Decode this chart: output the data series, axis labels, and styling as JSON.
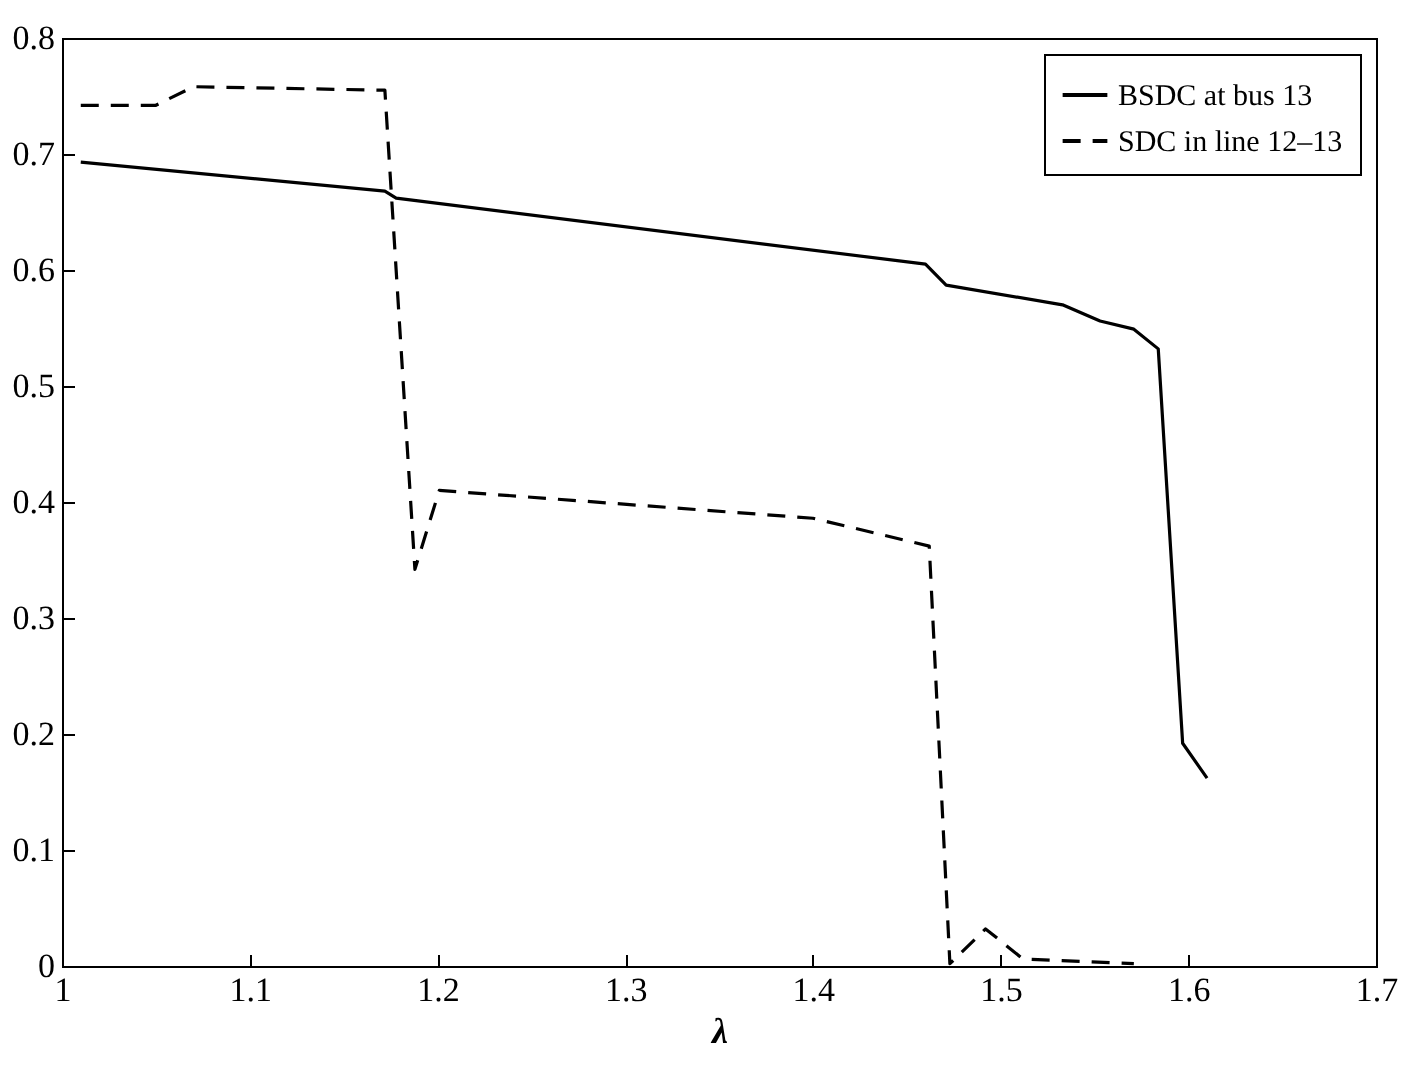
{
  "chart_data": {
    "type": "line",
    "xlabel": "λ",
    "xlim": [
      1,
      1.7
    ],
    "ylim": [
      0,
      0.8
    ],
    "xticks": [
      1,
      1.1,
      1.2,
      1.3,
      1.4,
      1.5,
      1.6,
      1.7
    ],
    "yticks": [
      0,
      0.1,
      0.2,
      0.3,
      0.4,
      0.5,
      0.6,
      0.7,
      0.8
    ],
    "legend": "top right",
    "grid": false,
    "series": [
      {
        "name": "BSDC at bus 13",
        "color": "#000000",
        "line_style": "solid",
        "x": [
          1.01,
          1.172,
          1.178,
          1.46,
          1.471,
          1.533,
          1.553,
          1.571,
          1.584,
          1.597,
          1.61
        ],
        "values": [
          0.693,
          0.668,
          0.662,
          0.605,
          0.587,
          0.57,
          0.556,
          0.549,
          0.532,
          0.192,
          0.162
        ]
      },
      {
        "name": "SDC in line 12–13",
        "color": "#000000",
        "line_style": "dashed",
        "x": [
          1.01,
          1.05,
          1.07,
          1.172,
          1.188,
          1.201,
          1.4,
          1.462,
          1.473,
          1.492,
          1.512,
          1.571
        ],
        "values": [
          0.742,
          0.742,
          0.758,
          0.755,
          0.342,
          0.41,
          0.386,
          0.362,
          0.002,
          0.032,
          0.006,
          0.002
        ]
      }
    ]
  }
}
